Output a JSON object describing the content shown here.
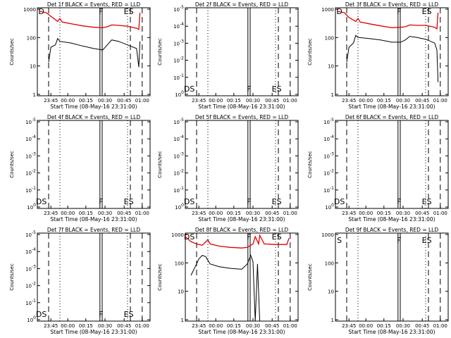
{
  "colors": {
    "events": "#000000",
    "lld": "#e00000",
    "axis": "#000000"
  },
  "chart_data": [
    {
      "type": "line",
      "title": "Det 1f BLACK = Events, RED = LLD",
      "xlabel": "Start Time (08-May-16 23:31:00)",
      "ylabel": "Counts/sec",
      "xticks": [
        "23:45",
        "00:00",
        "00:15",
        "00:30",
        "00:45",
        "01:00"
      ],
      "yticks": [
        "1",
        "10",
        "100",
        "1000"
      ],
      "markers": [
        {
          "label": "D",
          "pos": "left"
        },
        {
          "label": "F",
          "pos": "mid"
        },
        {
          "label": "ES",
          "pos": "right"
        }
      ],
      "series": [
        {
          "color": "red",
          "role": "lld",
          "points": [
            [
              0.02,
              900
            ],
            [
              0.08,
              800
            ],
            [
              0.12,
              600
            ],
            [
              0.18,
              400
            ],
            [
              0.2,
              500
            ],
            [
              0.22,
              380
            ],
            [
              0.25,
              360
            ],
            [
              0.3,
              330
            ],
            [
              0.4,
              280
            ],
            [
              0.5,
              250
            ],
            [
              0.58,
              240
            ],
            [
              0.62,
              260
            ],
            [
              0.66,
              300
            ],
            [
              0.72,
              290
            ],
            [
              0.8,
              270
            ],
            [
              0.88,
              230
            ],
            [
              0.9,
              210
            ],
            [
              0.91,
              800
            ]
          ]
        },
        {
          "color": "black",
          "role": "events",
          "points": [
            [
              0.1,
              15
            ],
            [
              0.12,
              50
            ],
            [
              0.16,
              60
            ],
            [
              0.18,
              100
            ],
            [
              0.2,
              80
            ],
            [
              0.3,
              70
            ],
            [
              0.4,
              55
            ],
            [
              0.5,
              45
            ],
            [
              0.58,
              40
            ],
            [
              0.62,
              60
            ],
            [
              0.66,
              90
            ],
            [
              0.72,
              80
            ],
            [
              0.8,
              60
            ],
            [
              0.88,
              45
            ],
            [
              0.9,
              10
            ],
            [
              0.91,
              80
            ]
          ]
        }
      ]
    },
    {
      "type": "line",
      "title": "Det 2f BLACK = Events, RED = LLD",
      "xlabel": "Start Time (08-May-16 23:31:00)",
      "ylabel": "Counts/sec",
      "xticks": [
        "23:45",
        "00:00",
        "00:15",
        "00:30",
        "00:45",
        "01:00"
      ],
      "yticks": [
        "10^0",
        "10^-1",
        "10^-2",
        "10^-3",
        "10^-4",
        "10^-5"
      ],
      "markers": [
        {
          "label": "DS",
          "pos": "left"
        },
        {
          "label": "F",
          "pos": "mid"
        },
        {
          "label": "ES",
          "pos": "right"
        }
      ],
      "series": []
    },
    {
      "type": "line",
      "title": "Det 3f BLACK = Events, RED = LLD",
      "xlabel": "Start Time (08-May-16 23:31:00)",
      "ylabel": "Counts/sec",
      "xticks": [
        "23:45",
        "00:00",
        "00:15",
        "00:30",
        "00:45",
        "01:00"
      ],
      "yticks": [
        "1",
        "10",
        "100",
        "1000"
      ],
      "markers": [
        {
          "label": "D",
          "pos": "left"
        },
        {
          "label": "F",
          "pos": "mid"
        },
        {
          "label": "ES",
          "pos": "right"
        }
      ],
      "series": [
        {
          "color": "red",
          "role": "lld",
          "points": [
            [
              0.02,
              900
            ],
            [
              0.08,
              800
            ],
            [
              0.12,
              550
            ],
            [
              0.18,
              400
            ],
            [
              0.2,
              500
            ],
            [
              0.22,
              380
            ],
            [
              0.3,
              330
            ],
            [
              0.4,
              280
            ],
            [
              0.5,
              240
            ],
            [
              0.58,
              250
            ],
            [
              0.62,
              260
            ],
            [
              0.66,
              300
            ],
            [
              0.72,
              290
            ],
            [
              0.8,
              290
            ],
            [
              0.88,
              250
            ],
            [
              0.9,
              220
            ],
            [
              0.91,
              800
            ]
          ]
        },
        {
          "color": "black",
          "role": "events",
          "points": [
            [
              0.1,
              15
            ],
            [
              0.12,
              50
            ],
            [
              0.16,
              70
            ],
            [
              0.18,
              130
            ],
            [
              0.2,
              110
            ],
            [
              0.3,
              100
            ],
            [
              0.4,
              90
            ],
            [
              0.5,
              75
            ],
            [
              0.58,
              75
            ],
            [
              0.62,
              90
            ],
            [
              0.66,
              120
            ],
            [
              0.72,
              110
            ],
            [
              0.8,
              95
            ],
            [
              0.88,
              70
            ],
            [
              0.9,
              40
            ],
            [
              0.91,
              3
            ]
          ]
        }
      ]
    },
    {
      "type": "line",
      "title": "Det 4f BLACK = Events, RED = LLD",
      "xlabel": "Start Time (08-May-16 23:31:00)",
      "ylabel": "Counts/sec",
      "xticks": [
        "23:45",
        "00:00",
        "00:15",
        "00:30",
        "00:45",
        "01:00"
      ],
      "yticks": [
        "10^0",
        "10^-1",
        "10^-2",
        "10^-3",
        "10^-4",
        "10^-5"
      ],
      "markers": [
        {
          "label": "DS",
          "pos": "left"
        },
        {
          "label": "F",
          "pos": "mid"
        },
        {
          "label": "ES",
          "pos": "right"
        }
      ],
      "series": []
    },
    {
      "type": "line",
      "title": "Det 5f BLACK = Events, RED = LLD",
      "xlabel": "Start Time (08-May-16 23:31:00)",
      "ylabel": "Counts/sec",
      "xticks": [
        "23:45",
        "00:00",
        "00:15",
        "00:30",
        "00:45",
        "01:00"
      ],
      "yticks": [
        "10^0",
        "10^-1",
        "10^-2",
        "10^-3",
        "10^-4",
        "10^-5"
      ],
      "markers": [
        {
          "label": "DS",
          "pos": "left"
        },
        {
          "label": "F",
          "pos": "mid"
        },
        {
          "label": "ES",
          "pos": "right"
        }
      ],
      "series": []
    },
    {
      "type": "line",
      "title": "Det 6f BLACK = Events, RED = LLD",
      "xlabel": "Start Time (08-May-16 23:31:00)",
      "ylabel": "Counts/sec",
      "xticks": [
        "23:45",
        "00:00",
        "00:15",
        "00:30",
        "00:45",
        "01:00"
      ],
      "yticks": [
        "10^0",
        "10^-1",
        "10^-2",
        "10^-3",
        "10^-4",
        "10^-5"
      ],
      "markers": [
        {
          "label": "DS",
          "pos": "left"
        },
        {
          "label": "F",
          "pos": "mid"
        },
        {
          "label": "ES",
          "pos": "right"
        }
      ],
      "series": []
    },
    {
      "type": "line",
      "title": "Det 7f BLACK = Events, RED = LLD",
      "xlabel": "Start Time (08-May-16 23:31:00)",
      "ylabel": "Counts/sec",
      "xticks": [
        "23:45",
        "00:00",
        "00:15",
        "00:30",
        "00:45",
        "01:00"
      ],
      "yticks": [
        "10^0",
        "10^-1",
        "10^-2",
        "10^-3",
        "10^-4",
        "10^-5"
      ],
      "markers": [
        {
          "label": "DS",
          "pos": "left"
        },
        {
          "label": "F",
          "pos": "mid"
        },
        {
          "label": "ES",
          "pos": "right"
        }
      ],
      "series": []
    },
    {
      "type": "line",
      "title": "Det 8f BLACK = Events, RED = LLD",
      "xlabel": "Start Time (08-May-16 23:31:00)",
      "ylabel": "Counts/sec",
      "xticks": [
        "23:45",
        "00:00",
        "00:15",
        "00:30",
        "00:45",
        "01:00"
      ],
      "yticks": [
        "1",
        "10",
        "100",
        "1000"
      ],
      "markers": [
        {
          "label": "DS",
          "pos": "left"
        },
        {
          "label": "F",
          "pos": "mid"
        },
        {
          "label": "ES",
          "pos": "right"
        }
      ],
      "series": [
        {
          "color": "red",
          "role": "lld",
          "points": [
            [
              0.0,
              900
            ],
            [
              0.05,
              600
            ],
            [
              0.1,
              500
            ],
            [
              0.15,
              450
            ],
            [
              0.2,
              700
            ],
            [
              0.22,
              500
            ],
            [
              0.3,
              420
            ],
            [
              0.4,
              380
            ],
            [
              0.5,
              360
            ],
            [
              0.55,
              380
            ],
            [
              0.6,
              500
            ],
            [
              0.62,
              900
            ],
            [
              0.65,
              500
            ],
            [
              0.66,
              1000
            ],
            [
              0.7,
              500
            ],
            [
              0.8,
              480
            ],
            [
              0.9,
              480
            ],
            [
              0.92,
              800
            ]
          ]
        },
        {
          "color": "black",
          "role": "events",
          "points": [
            [
              0.05,
              40
            ],
            [
              0.1,
              100
            ],
            [
              0.12,
              150
            ],
            [
              0.15,
              200
            ],
            [
              0.18,
              180
            ],
            [
              0.22,
              100
            ],
            [
              0.3,
              80
            ],
            [
              0.4,
              70
            ],
            [
              0.5,
              65
            ],
            [
              0.55,
              100
            ],
            [
              0.58,
              200
            ],
            [
              0.6,
              120
            ],
            [
              0.62,
              1
            ],
            [
              0.64,
              100
            ],
            [
              0.66,
              1
            ]
          ]
        }
      ]
    },
    {
      "type": "line",
      "title": "Det 9f BLACK = Events, RED = LLD",
      "xlabel": "Start Time (08-May-16 23:31:00)",
      "ylabel": "Counts/sec",
      "xticks": [
        "23:45",
        "00:00",
        "00:15",
        "00:30",
        "00:45",
        "01:00"
      ],
      "yticks": [
        "1",
        "10",
        "100",
        "1000"
      ],
      "markers": [
        {
          "label": "S",
          "pos": "left"
        },
        {
          "label": "F",
          "pos": "mid"
        },
        {
          "label": "ES",
          "pos": "right"
        }
      ],
      "series": []
    }
  ]
}
